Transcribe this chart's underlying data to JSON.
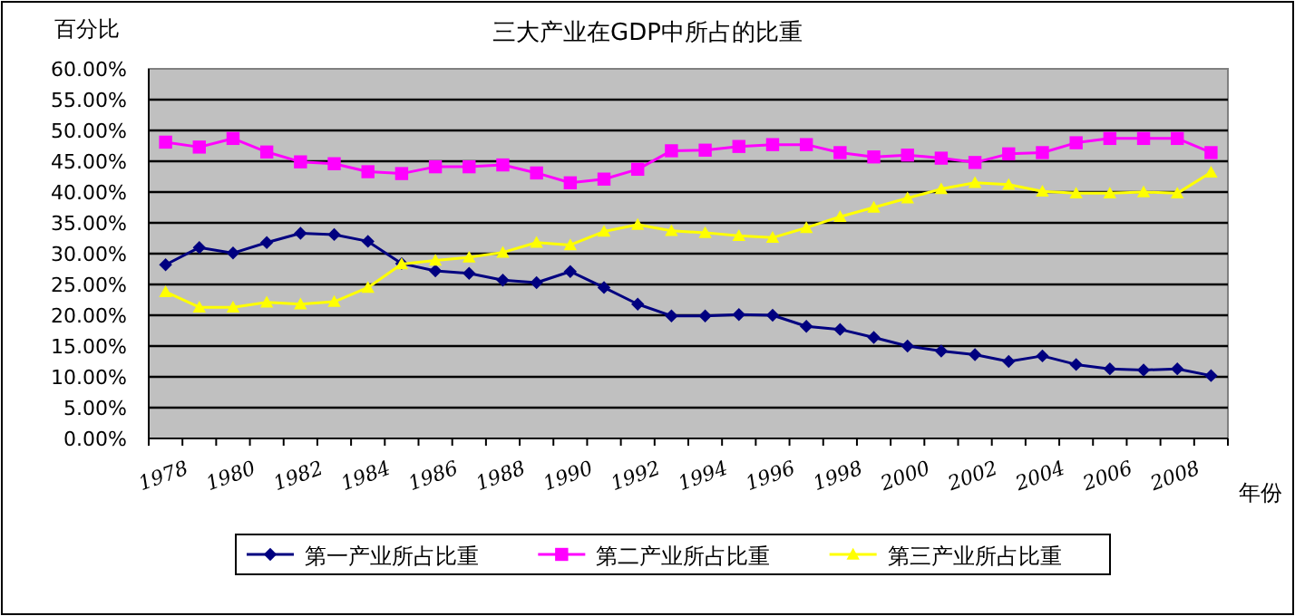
{
  "chart_data": {
    "type": "line",
    "title": "三大产业在GDP中所占的比重",
    "ylabel": "百分比",
    "xlabel": "年份",
    "categories": [
      "1978",
      null,
      "1980",
      null,
      "1982",
      null,
      "1984",
      null,
      "1986",
      null,
      "1988",
      null,
      "1990",
      null,
      "1992",
      null,
      "1994",
      null,
      "1996",
      null,
      "1998",
      null,
      "2000",
      null,
      "2002",
      null,
      "2004",
      null,
      "2006",
      null,
      "2008",
      null
    ],
    "series": [
      {
        "name": "第一产业所占比重",
        "color": "#000080",
        "marker": "diamond",
        "values": [
          28.2,
          31.0,
          30.1,
          31.8,
          33.3,
          33.1,
          32.0,
          28.4,
          27.2,
          26.8,
          25.7,
          25.3,
          27.1,
          24.5,
          21.8,
          19.9,
          19.9,
          20.1,
          20.0,
          18.2,
          17.7,
          16.4,
          15.0,
          14.2,
          13.6,
          12.5,
          13.4,
          12.0,
          11.3,
          11.1,
          11.3,
          10.2
        ]
      },
      {
        "name": "第二产业所占比重",
        "color": "#ff00ff",
        "marker": "square",
        "values": [
          48.1,
          47.3,
          48.7,
          46.5,
          44.9,
          44.6,
          43.3,
          43.0,
          44.1,
          44.1,
          44.4,
          43.1,
          41.5,
          42.1,
          43.7,
          46.7,
          46.8,
          47.4,
          47.7,
          47.7,
          46.4,
          45.7,
          46.0,
          45.5,
          44.8,
          46.2,
          46.4,
          48.0,
          48.7,
          48.7,
          48.7,
          46.4
        ]
      },
      {
        "name": "第三产业所占比重",
        "color": "#ffff00",
        "marker": "triangle",
        "values": [
          23.8,
          21.3,
          21.3,
          22.1,
          21.8,
          22.2,
          24.5,
          28.3,
          28.9,
          29.4,
          30.2,
          31.8,
          31.4,
          33.6,
          34.7,
          33.7,
          33.4,
          32.9,
          32.6,
          34.2,
          36.0,
          37.5,
          39.0,
          40.5,
          41.5,
          41.2,
          40.1,
          39.8,
          39.8,
          40.0,
          39.8,
          43.2
        ]
      }
    ],
    "ylim": [
      0,
      60
    ],
    "yticks": [
      {
        "value": 0,
        "label": "0.00%"
      },
      {
        "value": 5,
        "label": "5.00%"
      },
      {
        "value": 10,
        "label": "10.00%"
      },
      {
        "value": 15,
        "label": "15.00%"
      },
      {
        "value": 20,
        "label": "20.00%"
      },
      {
        "value": 25,
        "label": "25.00%"
      },
      {
        "value": 30,
        "label": "30.00%"
      },
      {
        "value": 35,
        "label": "35.00%"
      },
      {
        "value": 40,
        "label": "40.00%"
      },
      {
        "value": 45,
        "label": "45.00%"
      },
      {
        "value": 50,
        "label": "50.00%"
      },
      {
        "value": 55,
        "label": "55.00%"
      },
      {
        "value": 60,
        "label": "60.00%"
      }
    ],
    "grid": "y",
    "legend": "bottom",
    "line_style": "solid"
  }
}
